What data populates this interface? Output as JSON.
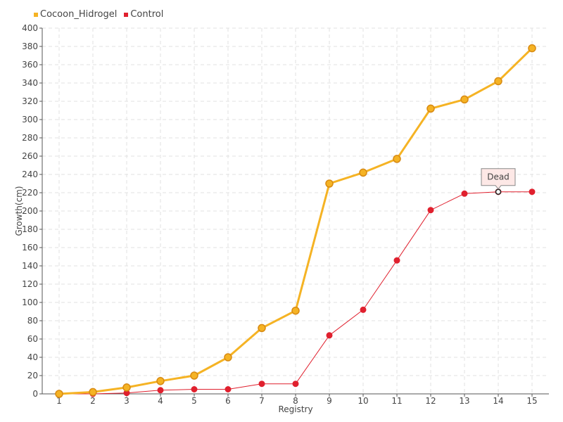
{
  "chart_data": {
    "type": "line",
    "title": "",
    "xlabel": "Registry",
    "ylabel": "Growth(cm)",
    "x": [
      1,
      2,
      3,
      4,
      5,
      6,
      7,
      8,
      9,
      10,
      11,
      12,
      13,
      14,
      15
    ],
    "ylim": [
      0,
      400
    ],
    "ytick_step": 20,
    "grid": true,
    "legend_position": "top-left",
    "series": [
      {
        "name": "Cocoon_Hidrogel",
        "color": "#f5b324",
        "values": [
          0,
          2,
          7,
          14,
          20,
          40,
          72,
          91,
          230,
          242,
          257,
          312,
          322,
          342,
          378
        ]
      },
      {
        "name": "Control",
        "color": "#e0202e",
        "values": [
          0,
          0,
          1,
          4,
          5,
          5,
          11,
          11,
          64,
          92,
          146,
          201,
          219,
          221,
          221
        ]
      }
    ],
    "annotations": [
      {
        "text": "Dead",
        "series": "Control",
        "x": 14
      }
    ]
  }
}
